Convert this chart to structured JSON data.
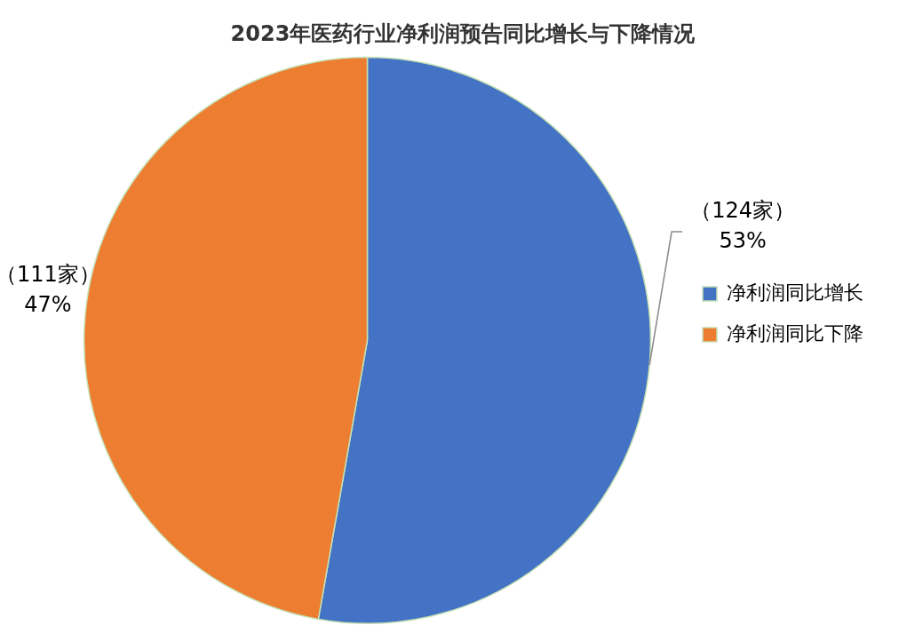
{
  "chart_data": {
    "type": "pie",
    "title": "2023年医药行业净利润预告同比增长与下降情况",
    "categories": [
      "净利润同比增长",
      "净利润同比下降"
    ],
    "values": [
      124,
      111
    ],
    "colors": [
      "#4472c4",
      "#ed7d31"
    ],
    "value_labels": [
      "（124家）\n53%",
      "（111家）\n47%"
    ],
    "legend": "right"
  }
}
